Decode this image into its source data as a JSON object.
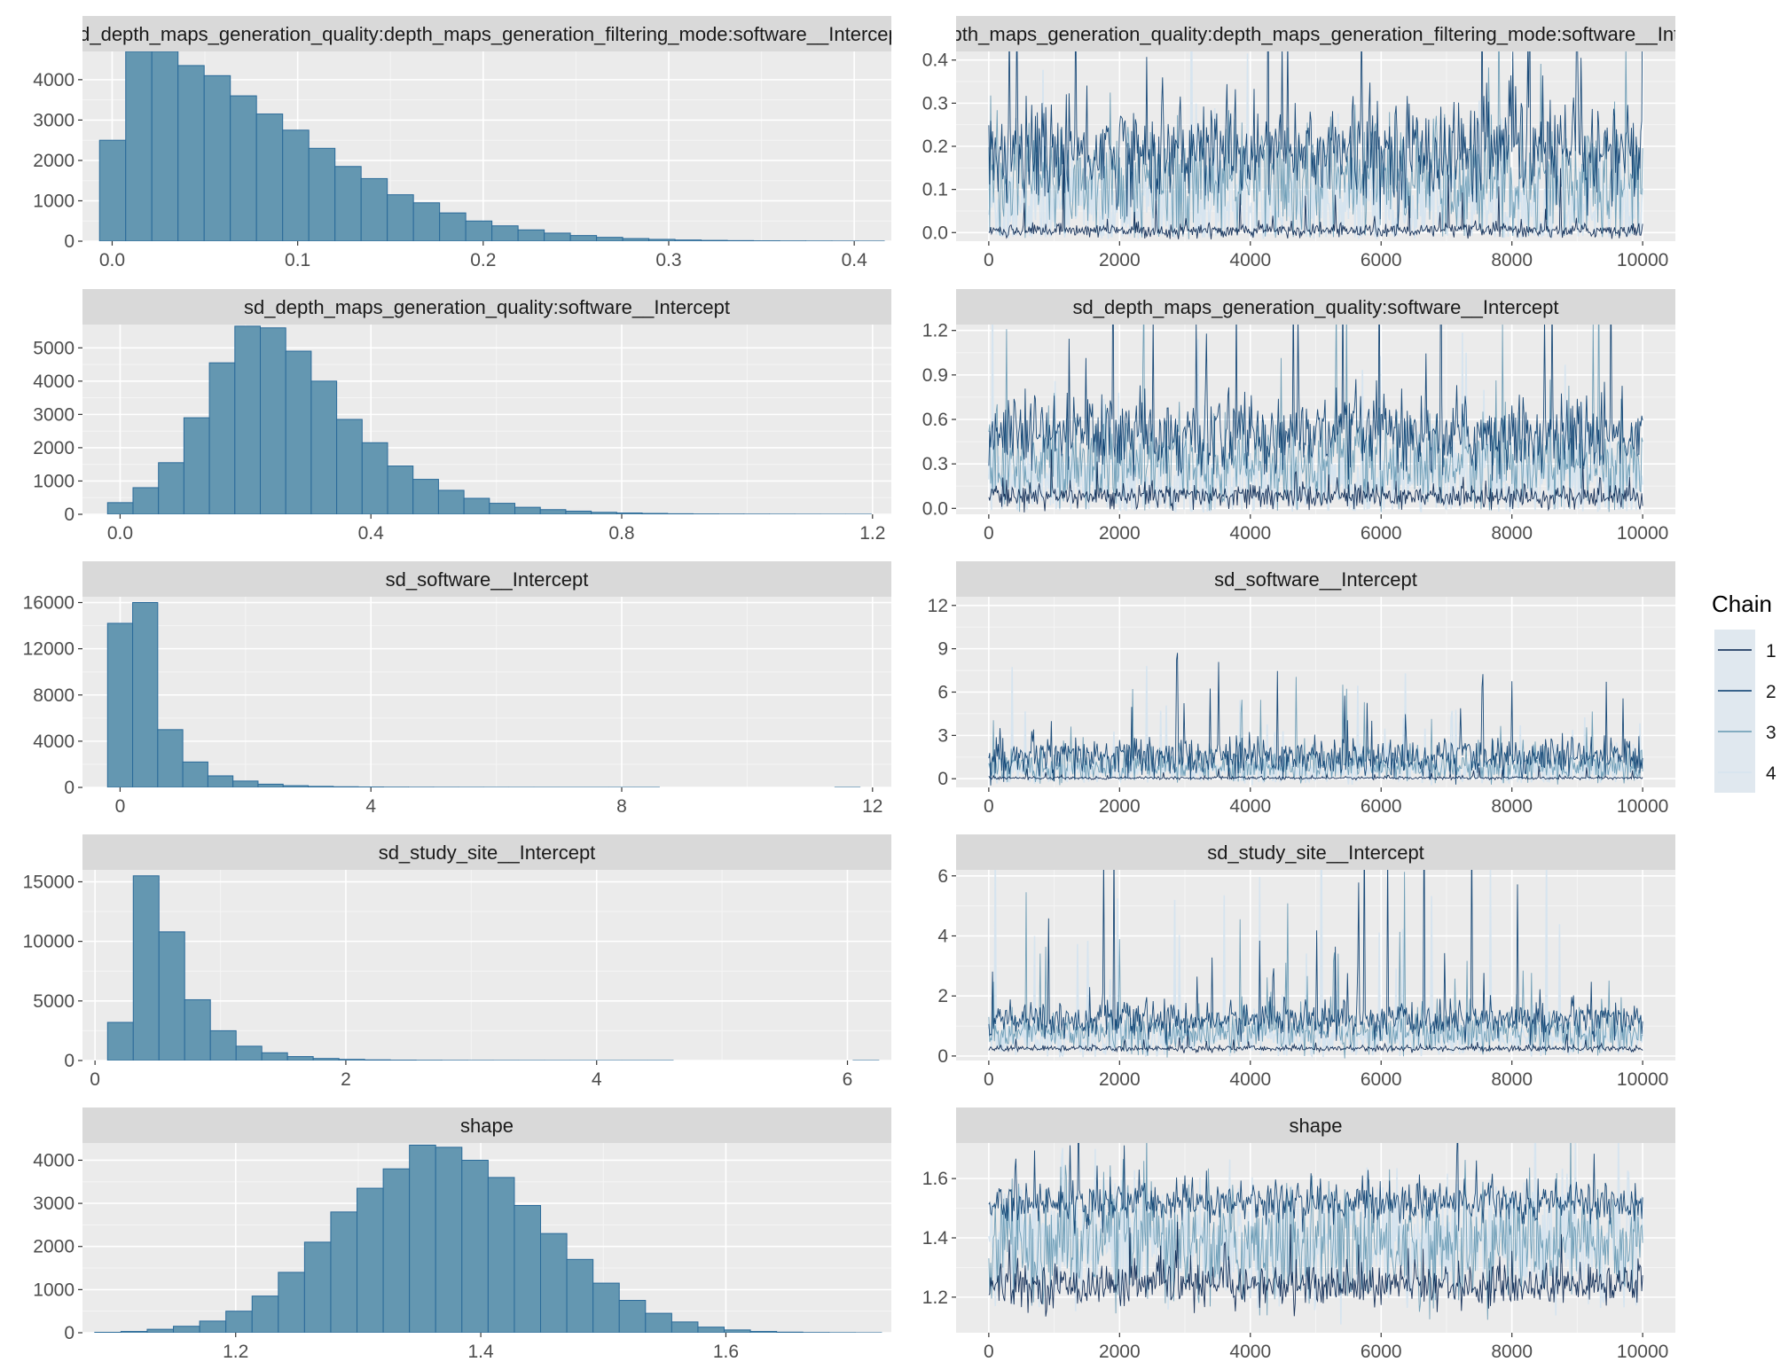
{
  "colors": {
    "panel_bg": "#ebebeb",
    "grid_major": "#ffffff",
    "strip_bg": "#d9d9d9",
    "hist_fill": "#6497b1",
    "hist_stroke": "#2a6a99",
    "chain_colors": [
      "#011f4b",
      "#03396c",
      "#6497b1",
      "#d6e4ef"
    ]
  },
  "legend": {
    "title": "Chain",
    "items": [
      "1",
      "2",
      "3",
      "4"
    ]
  },
  "chart_data": [
    {
      "type": "bar",
      "title": "sd_depth_maps_generation_quality:depth_maps_generation_filtering_mode:software__Intercept",
      "xlim": [
        -0.016,
        0.42
      ],
      "ylim": [
        0,
        4700
      ],
      "x_ticks": [
        0.0,
        0.1,
        0.2,
        0.3,
        0.4
      ],
      "x_tick_labels": [
        "0.0",
        "0.1",
        "0.2",
        "0.3",
        "0.4"
      ],
      "y_ticks": [
        0,
        1000,
        2000,
        3000,
        4000
      ],
      "y_tick_labels": [
        "0",
        "1000",
        "2000",
        "3000",
        "4000"
      ],
      "bin_start": -0.0068,
      "bin_width": 0.0141,
      "values": [
        2500,
        4700,
        4700,
        4350,
        4100,
        3600,
        3150,
        2750,
        2300,
        1850,
        1550,
        1150,
        950,
        700,
        500,
        380,
        280,
        200,
        140,
        95,
        65,
        45,
        30,
        20,
        14,
        9,
        6,
        4,
        3,
        2
      ]
    },
    {
      "type": "line",
      "title": "sd_depth_maps_generation_quality:depth_maps_generation_filtering_mode:software__Intercept",
      "xlim": [
        -500,
        10500
      ],
      "ylim": [
        -0.02,
        0.42
      ],
      "x_ticks": [
        0,
        2000,
        4000,
        6000,
        8000,
        10000
      ],
      "x_tick_labels": [
        "0",
        "2000",
        "4000",
        "6000",
        "8000",
        "10000"
      ],
      "y_ticks": [
        0.0,
        0.1,
        0.2,
        0.3,
        0.4
      ],
      "y_tick_labels": [
        "0.0",
        "0.1",
        "0.2",
        "0.3",
        "0.4"
      ],
      "n_iter": 10000,
      "series": [
        {
          "name": "1",
          "center": 0.005,
          "spread": 0.008,
          "spike": 0.04
        },
        {
          "name": "2",
          "center": 0.19,
          "spread": 0.06,
          "spike": 0.16
        },
        {
          "name": "3",
          "center": 0.12,
          "spread": 0.07,
          "spike": 0.12
        },
        {
          "name": "4",
          "center": 0.06,
          "spread": 0.06,
          "spike": 0.1
        }
      ]
    },
    {
      "type": "bar",
      "title": "sd_depth_maps_generation_quality:software__Intercept",
      "xlim": [
        -0.06,
        1.23
      ],
      "ylim": [
        0,
        5700
      ],
      "x_ticks": [
        0.0,
        0.4,
        0.8,
        1.2
      ],
      "x_tick_labels": [
        "0.0",
        "0.4",
        "0.8",
        "1.2"
      ],
      "y_ticks": [
        0,
        1000,
        2000,
        3000,
        4000,
        5000
      ],
      "y_tick_labels": [
        "0",
        "1000",
        "2000",
        "3000",
        "4000",
        "5000"
      ],
      "bin_start": -0.02,
      "bin_width": 0.0406,
      "values": [
        350,
        800,
        1550,
        2900,
        4550,
        5650,
        5600,
        4900,
        4000,
        2850,
        2150,
        1450,
        1050,
        720,
        480,
        330,
        210,
        140,
        95,
        60,
        40,
        26,
        16,
        10,
        7,
        5,
        3,
        2,
        1,
        1
      ]
    },
    {
      "type": "line",
      "title": "sd_depth_maps_generation_quality:software__Intercept",
      "xlim": [
        -500,
        10500
      ],
      "ylim": [
        -0.04,
        1.24
      ],
      "x_ticks": [
        0,
        2000,
        4000,
        6000,
        8000,
        10000
      ],
      "x_tick_labels": [
        "0",
        "2000",
        "4000",
        "6000",
        "8000",
        "10000"
      ],
      "y_ticks": [
        0.0,
        0.3,
        0.6,
        0.9,
        1.2
      ],
      "y_tick_labels": [
        "0.0",
        "0.3",
        "0.6",
        "0.9",
        "1.2"
      ],
      "n_iter": 10000,
      "series": [
        {
          "name": "1",
          "center": 0.08,
          "spread": 0.04,
          "spike": 0.08
        },
        {
          "name": "2",
          "center": 0.5,
          "spread": 0.13,
          "spike": 0.45
        },
        {
          "name": "3",
          "center": 0.3,
          "spread": 0.15,
          "spike": 0.35
        },
        {
          "name": "4",
          "center": 0.2,
          "spread": 0.15,
          "spike": 0.4
        }
      ]
    },
    {
      "type": "bar",
      "title": "sd_software__Intercept",
      "xlim": [
        -0.6,
        12.3
      ],
      "ylim": [
        0,
        16500
      ],
      "x_ticks": [
        0,
        4,
        8,
        12
      ],
      "x_tick_labels": [
        "0",
        "4",
        "8",
        "12"
      ],
      "y_ticks": [
        0,
        4000,
        8000,
        12000,
        16000
      ],
      "y_tick_labels": [
        "0",
        "4000",
        "8000",
        "12000",
        "16000"
      ],
      "bin_start": -0.2,
      "bin_width": 0.4,
      "values": [
        14200,
        16000,
        5000,
        2200,
        1000,
        550,
        280,
        150,
        90,
        55,
        35,
        22,
        14,
        9,
        6,
        4,
        3,
        2,
        1,
        1,
        1,
        1,
        0,
        0,
        0,
        0,
        0,
        0,
        0,
        1
      ]
    },
    {
      "type": "line",
      "title": "sd_software__Intercept",
      "xlim": [
        -500,
        10500
      ],
      "ylim": [
        -0.6,
        12.6
      ],
      "x_ticks": [
        0,
        2000,
        4000,
        6000,
        8000,
        10000
      ],
      "x_tick_labels": [
        "0",
        "2000",
        "4000",
        "6000",
        "8000",
        "10000"
      ],
      "y_ticks": [
        0,
        3,
        6,
        9,
        12
      ],
      "y_tick_labels": [
        "0",
        "3",
        "6",
        "9",
        "12"
      ],
      "n_iter": 10000,
      "series": [
        {
          "name": "1",
          "center": 0.05,
          "spread": 0.05,
          "spike": 0.2
        },
        {
          "name": "2",
          "center": 1.5,
          "spread": 0.7,
          "spike": 3.5
        },
        {
          "name": "3",
          "center": 0.9,
          "spread": 0.6,
          "spike": 2.5
        },
        {
          "name": "4",
          "center": 0.6,
          "spread": 0.5,
          "spike": 2.5
        }
      ]
    },
    {
      "type": "bar",
      "title": "sd_study_site__Intercept",
      "xlim": [
        -0.1,
        6.35
      ],
      "ylim": [
        0,
        16000
      ],
      "x_ticks": [
        0,
        2,
        4,
        6
      ],
      "x_tick_labels": [
        "0",
        "2",
        "4",
        "6"
      ],
      "y_ticks": [
        0,
        5000,
        10000,
        15000
      ],
      "y_tick_labels": [
        "0",
        "5000",
        "10000",
        "15000"
      ],
      "bin_start": 0.1,
      "bin_width": 0.205,
      "values": [
        3200,
        15500,
        10800,
        5100,
        2500,
        1200,
        650,
        330,
        170,
        95,
        55,
        32,
        20,
        12,
        8,
        5,
        3,
        2,
        1,
        1,
        1,
        1,
        0,
        0,
        0,
        0,
        0,
        0,
        0,
        1
      ]
    },
    {
      "type": "line",
      "title": "sd_study_site__Intercept",
      "xlim": [
        -500,
        10500
      ],
      "ylim": [
        -0.15,
        6.2
      ],
      "x_ticks": [
        0,
        2000,
        4000,
        6000,
        8000,
        10000
      ],
      "x_tick_labels": [
        "0",
        "2000",
        "4000",
        "6000",
        "8000",
        "10000"
      ],
      "y_ticks": [
        0,
        2,
        4,
        6
      ],
      "y_tick_labels": [
        "0",
        "2",
        "4",
        "6"
      ],
      "n_iter": 10000,
      "series": [
        {
          "name": "1",
          "center": 0.25,
          "spread": 0.05,
          "spike": 0.15
        },
        {
          "name": "2",
          "center": 1.2,
          "spread": 0.3,
          "spike": 1.8
        },
        {
          "name": "3",
          "center": 0.8,
          "spread": 0.35,
          "spike": 1.6
        },
        {
          "name": "4",
          "center": 0.6,
          "spread": 0.3,
          "spike": 2.2
        }
      ]
    },
    {
      "type": "bar",
      "title": "shape",
      "xlim": [
        1.075,
        1.735
      ],
      "ylim": [
        0,
        4400
      ],
      "x_ticks": [
        1.2,
        1.4,
        1.6
      ],
      "x_tick_labels": [
        "1.2",
        "1.4",
        "1.6"
      ],
      "y_ticks": [
        0,
        1000,
        2000,
        3000,
        4000
      ],
      "y_tick_labels": [
        "0",
        "1000",
        "2000",
        "3000",
        "4000"
      ],
      "bin_start": 1.085,
      "bin_width": 0.0214,
      "values": [
        10,
        30,
        80,
        150,
        270,
        500,
        850,
        1400,
        2100,
        2800,
        3350,
        3800,
        4350,
        4300,
        4000,
        3600,
        2950,
        2300,
        1700,
        1150,
        750,
        450,
        250,
        130,
        65,
        30,
        14,
        6,
        3,
        1
      ]
    },
    {
      "type": "line",
      "title": "shape",
      "xlim": [
        -500,
        10500
      ],
      "ylim": [
        1.08,
        1.72
      ],
      "x_ticks": [
        0,
        2000,
        4000,
        6000,
        8000,
        10000
      ],
      "x_tick_labels": [
        "0",
        "2000",
        "4000",
        "6000",
        "8000",
        "10000"
      ],
      "y_ticks": [
        1.2,
        1.4,
        1.6
      ],
      "y_tick_labels": [
        "1.2",
        "1.4",
        "1.6"
      ],
      "n_iter": 10000,
      "series": [
        {
          "name": "1",
          "center": 1.24,
          "spread": 0.035,
          "spike": 0.08
        },
        {
          "name": "2",
          "center": 1.52,
          "spread": 0.035,
          "spike": 0.08
        },
        {
          "name": "3",
          "center": 1.38,
          "spread": 0.1,
          "spike": 0.1
        },
        {
          "name": "4",
          "center": 1.38,
          "spread": 0.1,
          "spike": 0.15
        }
      ]
    }
  ]
}
